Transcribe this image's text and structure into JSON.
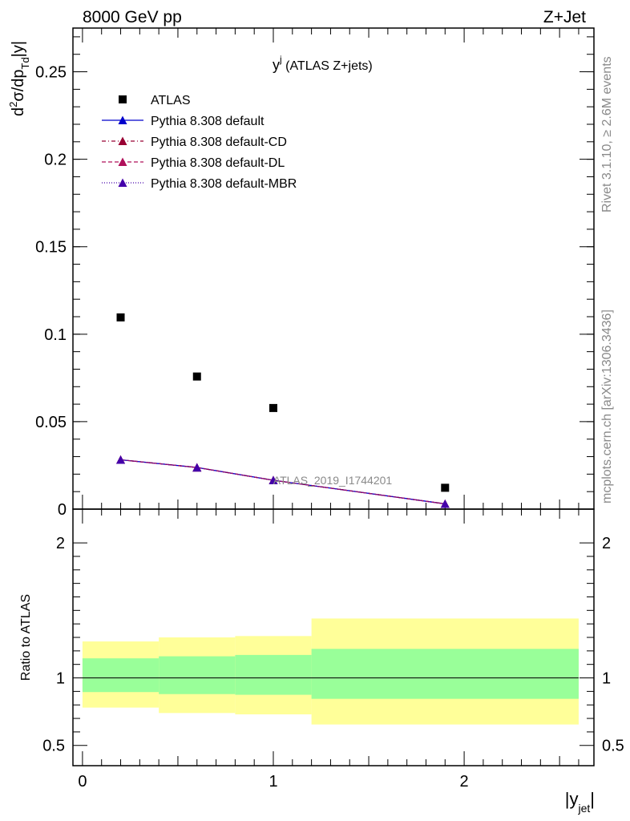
{
  "header": {
    "left": "8000 GeV pp",
    "right": "Z+Jet"
  },
  "plot_title": {
    "main": "y",
    "sup": "j",
    "suffix": " (ATLAS Z+jets)"
  },
  "watermark": "ATLAS_2019_I1744201",
  "side_labels": {
    "rivet": "Rivet 3.1.10, ≥ 2.6M events",
    "mcplots": "mcplots.cern.ch [arXiv:1306.3436]"
  },
  "axes": {
    "top_ylabel": {
      "prefix": "d",
      "sup": "2",
      "mid": "σ/dp",
      "sub": "Td",
      "suffix": "|y|"
    },
    "ratio_ylabel": "Ratio to ATLAS",
    "xlabel": {
      "main": "|y",
      "sub": "jet",
      "end": "|"
    }
  },
  "legend": {
    "entries": [
      {
        "label": "ATLAS",
        "marker": "square",
        "color": "#000000",
        "dash": "none"
      },
      {
        "label": "Pythia 8.308 default",
        "marker": "triangle",
        "color": "#0000cc",
        "dash": "none"
      },
      {
        "label": "Pythia 8.308 default-CD",
        "marker": "triangle",
        "color": "#990033",
        "dash": "5,3,1,3"
      },
      {
        "label": "Pythia 8.308 default-DL",
        "marker": "triangle",
        "color": "#b0105a",
        "dash": "5,3"
      },
      {
        "label": "Pythia 8.308 default-MBR",
        "marker": "triangle",
        "color": "#4400aa",
        "dash": "1,2"
      }
    ]
  },
  "chart_data": [
    {
      "type": "scatter",
      "panel": "main",
      "xlim": [
        -0.05,
        2.68
      ],
      "ylim": [
        0,
        0.275
      ],
      "yticks": [
        0,
        0.05,
        0.1,
        0.15,
        0.2,
        0.25
      ],
      "ytick_labels": [
        "0",
        "0.05",
        "0.1",
        "0.15",
        "0.2",
        "0.25"
      ],
      "series": [
        {
          "name": "ATLAS",
          "x": [
            0.2,
            0.6,
            1.0,
            1.9
          ],
          "y": [
            0.1096,
            0.0758,
            0.0578,
            0.0122
          ]
        },
        {
          "name": "Pythia 8.308 default",
          "x": [
            0.2,
            0.6,
            1.0,
            1.9
          ],
          "y": [
            0.0282,
            0.0238,
            0.0165,
            0.003
          ]
        },
        {
          "name": "Pythia 8.308 default-CD",
          "x": [
            0.2,
            0.6,
            1.0,
            1.9
          ],
          "y": [
            0.0282,
            0.0238,
            0.0165,
            0.003
          ]
        },
        {
          "name": "Pythia 8.308 default-DL",
          "x": [
            0.2,
            0.6,
            1.0,
            1.9
          ],
          "y": [
            0.0282,
            0.0238,
            0.0165,
            0.003
          ]
        },
        {
          "name": "Pythia 8.308 default-MBR",
          "x": [
            0.2,
            0.6,
            1.0,
            1.9
          ],
          "y": [
            0.0282,
            0.0238,
            0.0165,
            0.003
          ]
        }
      ]
    },
    {
      "type": "area",
      "panel": "ratio",
      "xlim": [
        -0.05,
        2.68
      ],
      "ylim": [
        0.35,
        2.25
      ],
      "yticks": [
        0.5,
        1,
        2
      ],
      "ytick_labels": [
        "0.5",
        "1",
        "2"
      ],
      "xticks": [
        0,
        1,
        2
      ],
      "xtick_labels": [
        "0",
        "1",
        "2"
      ],
      "reference_line": 1,
      "bins": [
        {
          "x0": 0.0,
          "x1": 0.4,
          "stat_lo": 0.895,
          "stat_hi": 1.145,
          "tot_lo": 0.78,
          "tot_hi": 1.27
        },
        {
          "x0": 0.4,
          "x1": 0.8,
          "stat_lo": 0.88,
          "stat_hi": 1.16,
          "tot_lo": 0.74,
          "tot_hi": 1.3
        },
        {
          "x0": 0.8,
          "x1": 1.2,
          "stat_lo": 0.875,
          "stat_hi": 1.17,
          "tot_lo": 0.73,
          "tot_hi": 1.31
        },
        {
          "x0": 1.2,
          "x1": 2.6,
          "stat_lo": 0.845,
          "stat_hi": 1.215,
          "tot_lo": 0.655,
          "tot_hi": 1.44
        }
      ]
    }
  ]
}
